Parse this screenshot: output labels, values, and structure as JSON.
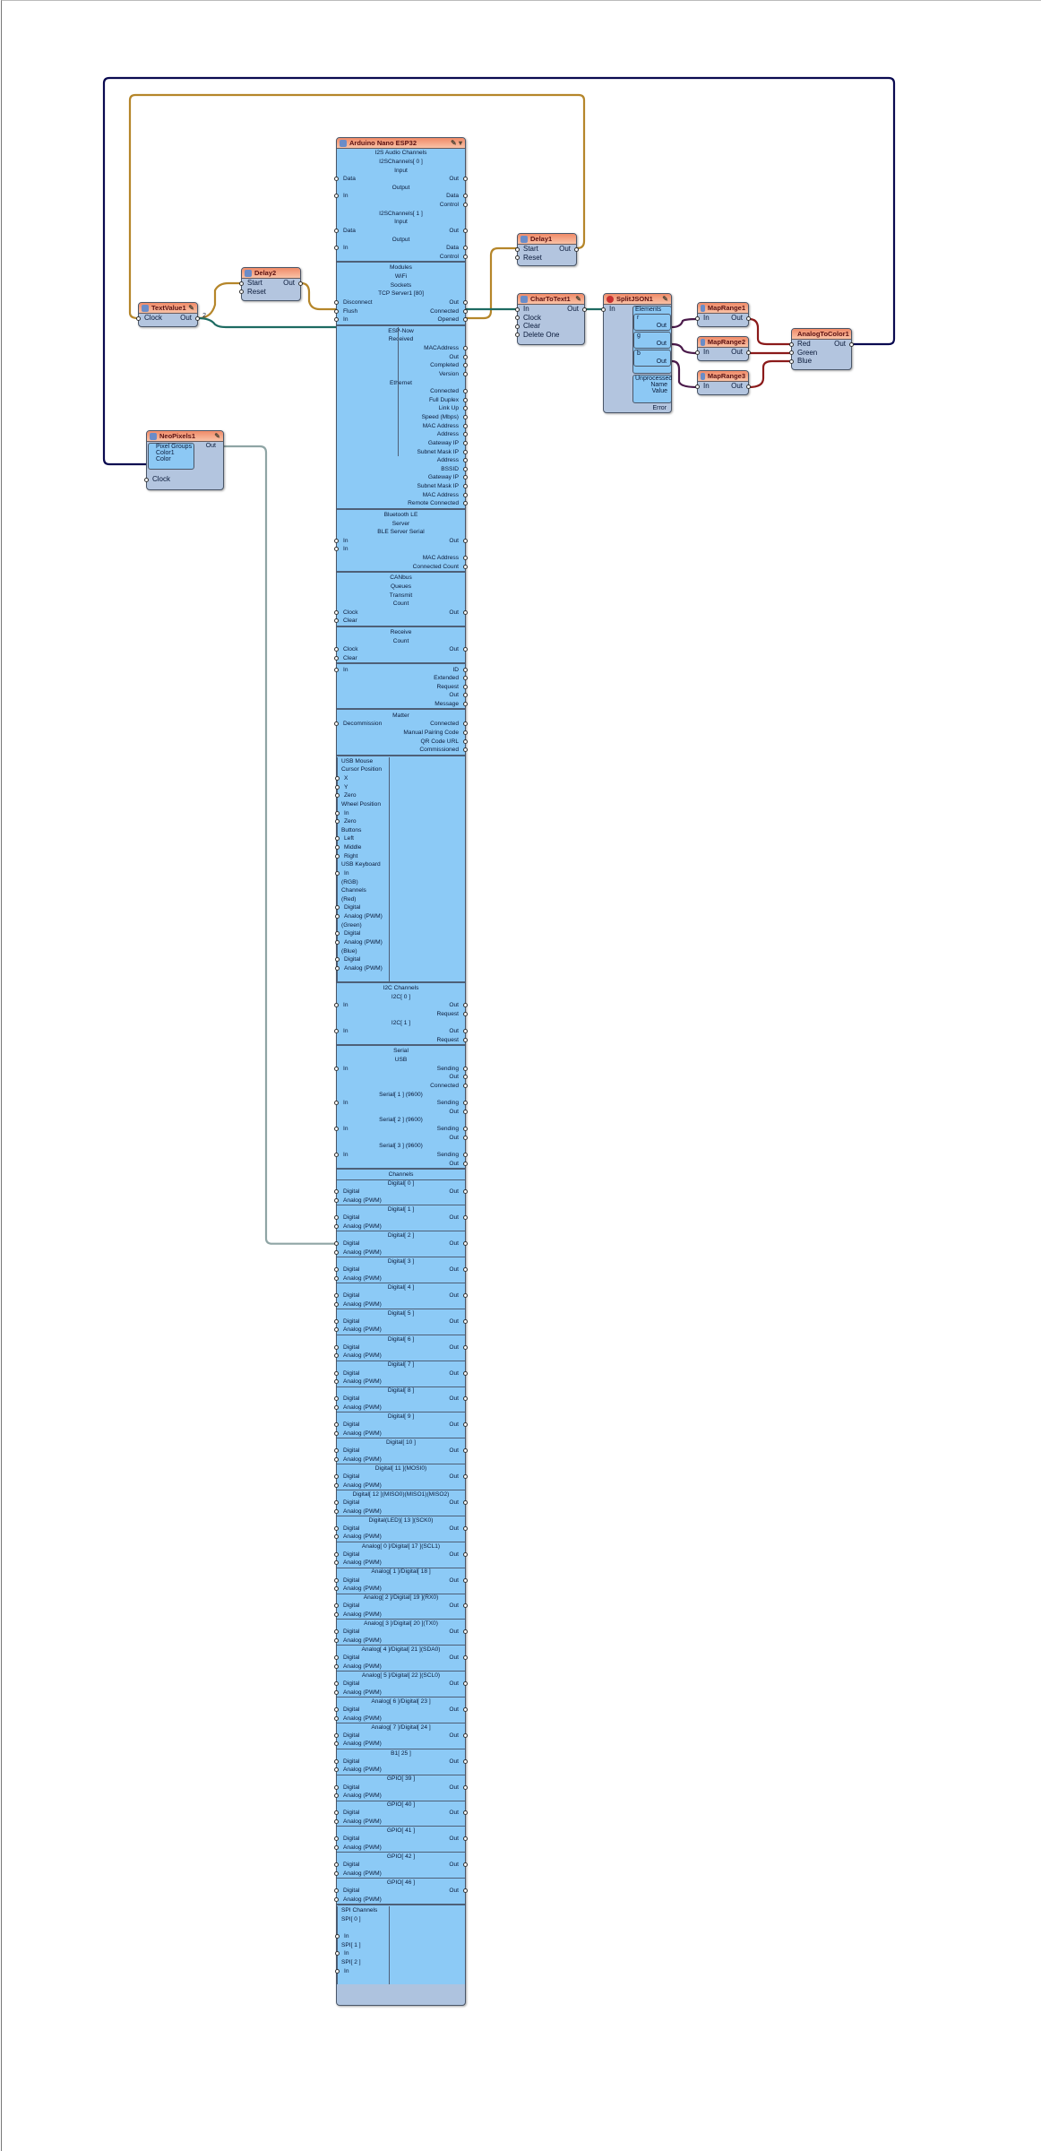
{
  "colors": {
    "board_body": "#8ccaf6",
    "component_body": "#b3c5df",
    "header": "#f08a68",
    "wire_navy": "#0a0a50",
    "wire_gold": "#b5862a",
    "wire_teal": "#1e6b62",
    "wire_purple": "#4a1a4a",
    "wire_red": "#8b1a1a",
    "wire_grey": "#8fa5a5"
  },
  "components": {
    "textvalue": {
      "title": "TextValue1",
      "pins": {
        "clock": "Clock",
        "out": "Out",
        "out_count": "2"
      }
    },
    "delay2": {
      "title": "Delay2",
      "pins": {
        "start": "Start",
        "reset": "Reset",
        "out": "Out"
      }
    },
    "delay1": {
      "title": "Delay1",
      "pins": {
        "start": "Start",
        "reset": "Reset",
        "out": "Out"
      }
    },
    "chartotext": {
      "title": "CharToText1",
      "pins": {
        "in": "In",
        "clock": "Clock",
        "clear": "Clear",
        "delete_one": "Delete One",
        "out": "Out"
      }
    },
    "splitjson": {
      "title": "SplitJSON1",
      "pins": {
        "in": "In",
        "elements": "Elements",
        "r": "r",
        "g": "g",
        "b": "b",
        "out": "Out",
        "unprocessed": "Unprocessed",
        "name": "Name",
        "value": "Value",
        "error": "Error"
      }
    },
    "maprange1": {
      "title": "MapRange1",
      "in": "In",
      "out": "Out"
    },
    "maprange2": {
      "title": "MapRange2",
      "in": "In",
      "out": "Out"
    },
    "maprange3": {
      "title": "MapRange3",
      "in": "In",
      "out": "Out"
    },
    "analogtocolor": {
      "title": "AnalogToColor1",
      "pins": {
        "red": "Red",
        "green": "Green",
        "blue": "Blue",
        "out": "Out"
      }
    },
    "neopixels": {
      "title": "NeoPixels1",
      "pins": {
        "pixel_groups": "Pixel Groups",
        "color1": "Color1",
        "color": "Color",
        "clock": "Clock",
        "out": "Out"
      }
    }
  },
  "board": {
    "title": "Arduino Nano ESP32",
    "rows": [
      {
        "c": "I2S Audio Channels"
      },
      {
        "c": "I2SChannels[ 0 ]"
      },
      {
        "c": "Input"
      },
      {
        "l": "Data",
        "r": "Out"
      },
      {
        "c": "Output"
      },
      {
        "l": "In",
        "r": "Data"
      },
      {
        "r": "Control"
      },
      {
        "c": "I2SChannels[ 1 ]"
      },
      {
        "c": "Input"
      },
      {
        "l": "Data",
        "r": "Out"
      },
      {
        "c": "Output"
      },
      {
        "l": "In",
        "r": "Data"
      },
      {
        "r": "Control"
      },
      {
        "s": 1
      },
      {
        "c": "Modules"
      },
      {
        "c": "WiFi"
      },
      {
        "c": "Sockets"
      },
      {
        "c": "TCP Server1 [80]"
      },
      {
        "l": "Disconnect",
        "r": "Out"
      },
      {
        "l": "Flush",
        "r": "Connected"
      },
      {
        "l": "In",
        "r": "Opened"
      },
      {
        "s": 1
      },
      {
        "c": "ESP-Now",
        "i": "R"
      },
      {
        "c": "Received",
        "i": "R"
      },
      {
        "r": "MACAddress",
        "i": "R"
      },
      {
        "r": "Out",
        "i": "R"
      },
      {
        "r": "Completed",
        "i": "R"
      },
      {
        "r": "Version",
        "i": "R"
      },
      {
        "c": "Ethernet",
        "i": "R"
      },
      {
        "r": "Connected",
        "i": "R"
      },
      {
        "r": "Full Duplex",
        "i": "R"
      },
      {
        "r": "Link Up",
        "i": "R"
      },
      {
        "r": "Speed (Mbps)",
        "i": "R"
      },
      {
        "r": "MAC Address",
        "i": "R"
      },
      {
        "r": "Address",
        "i": "R"
      },
      {
        "r": "Gateway IP",
        "i": "R"
      },
      {
        "r": "Subnet Mask IP",
        "i": "R"
      },
      {
        "r": "Address"
      },
      {
        "r": "BSSID"
      },
      {
        "r": "Gateway IP"
      },
      {
        "r": "Subnet Mask IP"
      },
      {
        "r": "MAC Address"
      },
      {
        "r": "Remote Connected"
      },
      {
        "s": 1
      },
      {
        "c": "Bluetooth LE"
      },
      {
        "c": "Server"
      },
      {
        "c": "BLE Server Serial"
      },
      {
        "l": "In",
        "r": "Out"
      },
      {
        "l": "In"
      },
      {
        "r": "MAC Address"
      },
      {
        "r": "Connected Count"
      },
      {
        "s": 1
      },
      {
        "c": "CANbus"
      },
      {
        "c": "Queues"
      },
      {
        "c": "Transmit"
      },
      {
        "c": "Count"
      },
      {
        "l": "Clock",
        "r": "Out"
      },
      {
        "l": "Clear"
      },
      {
        "s": 1
      },
      {
        "c": "Receive"
      },
      {
        "c": "Count"
      },
      {
        "l": "Clock",
        "r": "Out"
      },
      {
        "l": "Clear"
      },
      {
        "s": 1
      },
      {
        "l": "In",
        "r": "ID"
      },
      {
        "r": "Extended"
      },
      {
        "r": "Request"
      },
      {
        "r": "Out"
      },
      {
        "r": "Message"
      },
      {
        "s": 1
      },
      {
        "c": "Matter"
      },
      {
        "l": "Decommission",
        "r": "Connected"
      },
      {
        "r": "Manual Pairing Code"
      },
      {
        "r": "QR Code URL"
      },
      {
        "r": "Commissioned"
      },
      {
        "s": 1
      },
      {
        "c": "USB Mouse",
        "i": "L"
      },
      {
        "c": "Cursor Position",
        "i": "L"
      },
      {
        "l": "X",
        "i": "L"
      },
      {
        "l": "Y",
        "i": "L"
      },
      {
        "l": "Zero",
        "i": "L"
      },
      {
        "c": "Wheel Position",
        "i": "L"
      },
      {
        "l": "In",
        "i": "L"
      },
      {
        "l": "Zero",
        "i": "L"
      },
      {
        "c": "Buttons",
        "i": "L"
      },
      {
        "l": "Left",
        "i": "L"
      },
      {
        "l": "Middle",
        "i": "L"
      },
      {
        "l": "Right",
        "i": "L"
      },
      {
        "c": "USB Keyboard",
        "i": "L"
      },
      {
        "l": "In",
        "i": "L"
      },
      {
        "c": "(RGB)",
        "i": "L"
      },
      {
        "c": "Channels",
        "i": "L"
      },
      {
        "c": "(Red)",
        "i": "L"
      },
      {
        "l": "Digital",
        "i": "L"
      },
      {
        "l": "Analog (PWM)",
        "i": "L"
      },
      {
        "c": "(Green)",
        "i": "L"
      },
      {
        "l": "Digital",
        "i": "L"
      },
      {
        "l": "Analog (PWM)",
        "i": "L"
      },
      {
        "c": "(Blue)",
        "i": "L"
      },
      {
        "l": "Digital",
        "i": "L"
      },
      {
        "l": "Analog (PWM)",
        "i": "L"
      },
      {
        "i": "L"
      },
      {
        "s": 1
      },
      {
        "c": "I2C Channels"
      },
      {
        "c": "I2C[ 0 ]"
      },
      {
        "l": "In",
        "r": "Out"
      },
      {
        "r": "Request"
      },
      {
        "c": "I2C[ 1 ]"
      },
      {
        "l": "In",
        "r": "Out"
      },
      {
        "r": "Request"
      },
      {
        "s": 1
      },
      {
        "c": "Serial"
      },
      {
        "c": "USB"
      },
      {
        "l": "In",
        "r": "Sending"
      },
      {
        "r": "Out"
      },
      {
        "r": "Connected"
      },
      {
        "c": "Serial[ 1 ] (9600)"
      },
      {
        "l": "In",
        "r": "Sending"
      },
      {
        "r": "Out"
      },
      {
        "c": "Serial[ 2 ] (9600)"
      },
      {
        "l": "In",
        "r": "Sending"
      },
      {
        "r": "Out"
      },
      {
        "c": "Serial[ 3 ] (9600)"
      },
      {
        "l": "In",
        "r": "Sending"
      },
      {
        "r": "Out"
      },
      {
        "s": 1
      },
      {
        "c": "Channels"
      }
    ],
    "pin_channels": [
      "Digital[ 0 ]",
      "Digital[ 1 ]",
      "Digital[ 2 ]",
      "Digital[ 3 ]",
      "Digital[ 4 ]",
      "Digital[ 5 ]",
      "Digital[ 6 ]",
      "Digital[ 7 ]",
      "Digital[ 8 ]",
      "Digital[ 9 ]",
      "Digital[ 10 ]",
      "Digital[ 11 ](MOSI0)",
      "Digital[ 12 ](MISO0)(MISO1)(MISO2)",
      "Digital(LED)[ 13 ](SCK0)",
      "Analog[ 0 ]/Digital[ 17 ](SCL1)",
      "Analog[ 1 ]/Digital[ 18 ]",
      "Analog[ 2 ]/Digital[ 19 ](RX0)",
      "Analog[ 3 ]/Digital[ 20 ](TX0)",
      "Analog[ 4 ]/Digital[ 21 ](SDA0)",
      "Analog[ 5 ]/Digital[ 22 ](SCL0)",
      "Analog[ 6 ]/Digital[ 23 ]",
      "Analog[ 7 ]/Digital[ 24 ]",
      "B1[ 25 ]",
      "GPIO[ 39 ]",
      "GPIO[ 40 ]",
      "GPIO[ 41 ]",
      "GPIO[ 42 ]",
      "GPIO[ 46 ]"
    ],
    "pin_labels": {
      "digital": "Digital",
      "analog": "Analog (PWM)",
      "out": "Out"
    },
    "spi_rows": [
      {
        "c": "SPI Channels",
        "i": "L"
      },
      {
        "c": "SPI[ 0 ]",
        "i": "L"
      },
      {
        "i": "L"
      },
      {
        "l": "In",
        "i": "L"
      },
      {
        "c": "SPI[ 1 ]",
        "i": "L"
      },
      {
        "l": "In",
        "i": "L"
      },
      {
        "c": "SPI[ 2 ]",
        "i": "L"
      },
      {
        "l": "In",
        "i": "L"
      },
      {
        "i": "L"
      }
    ]
  }
}
